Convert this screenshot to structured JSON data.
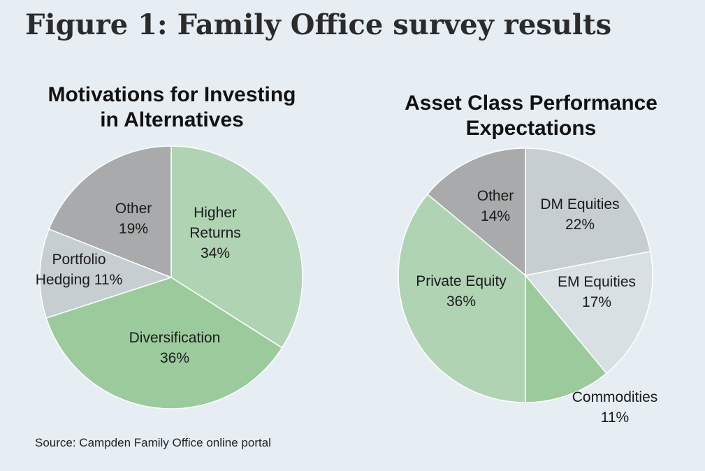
{
  "figure_title": "Figure 1: Family Office survey results",
  "source": "Source: Campden Family Office online portal",
  "colors": {
    "background": "#e6eef4",
    "light_green": "#b0d3b4",
    "green": "#9bcb9c",
    "light_gray": "#c7ced1",
    "dark_gray": "#a8aaab",
    "pale_gray": "#d8e0e4",
    "edge": "#ffffff"
  },
  "chart_data": [
    {
      "type": "pie",
      "title_lines": [
        "Motivations for Investing",
        "in Alternatives"
      ],
      "slices": [
        {
          "lines": [
            "Higher",
            "Returns",
            "34%"
          ],
          "value": 34,
          "color": "#b0d3b4"
        },
        {
          "lines": [
            "Diversification",
            "36%"
          ],
          "value": 36,
          "color": "#9bcb9c"
        },
        {
          "lines": [
            "Portfolio",
            "Hedging 11%"
          ],
          "value": 11,
          "color": "#c7ced1"
        },
        {
          "lines": [
            "Other",
            "19%"
          ],
          "value": 19,
          "color": "#a8aaab"
        }
      ]
    },
    {
      "type": "pie",
      "title_lines": [
        "Asset Class Performance",
        "Expectations"
      ],
      "slices": [
        {
          "lines": [
            "DM Equities",
            "22%"
          ],
          "value": 22,
          "color": "#c7ced1"
        },
        {
          "lines": [
            "EM Equities",
            "17%"
          ],
          "value": 17,
          "color": "#d8e0e4"
        },
        {
          "lines": [
            "Commodities",
            "11%"
          ],
          "value": 11,
          "color": "#9bcb9c"
        },
        {
          "lines": [
            "Private Equity",
            "36%"
          ],
          "value": 36,
          "color": "#b0d3b4"
        },
        {
          "lines": [
            "Other",
            "14%"
          ],
          "value": 14,
          "color": "#a8aaab"
        }
      ]
    }
  ]
}
